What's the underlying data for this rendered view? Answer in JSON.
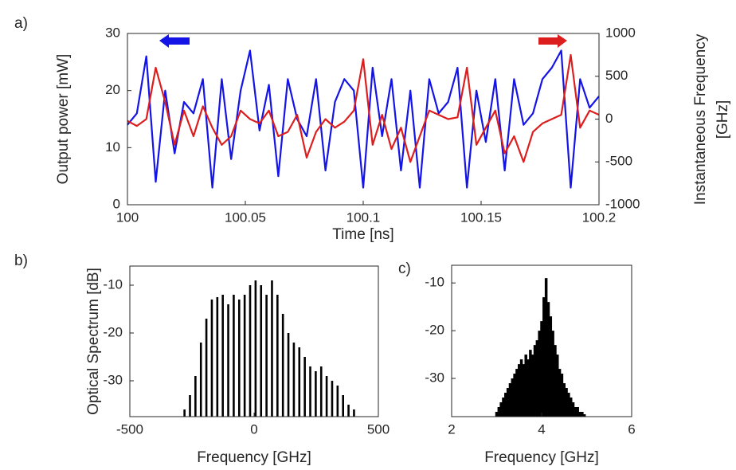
{
  "chart_data": [
    {
      "type": "line",
      "panel_label": "a)",
      "xlabel": "Time [ns]",
      "ylabel": "Output power [mW]",
      "y2label": [
        "Instantaneous Frequency",
        "[GHz]"
      ],
      "x": [
        100,
        100.004,
        100.008,
        100.012,
        100.016,
        100.02,
        100.024,
        100.028,
        100.032,
        100.036,
        100.04,
        100.044,
        100.048,
        100.052,
        100.056,
        100.06,
        100.064,
        100.068,
        100.072,
        100.076,
        100.08,
        100.084,
        100.088,
        100.092,
        100.096,
        100.1,
        100.104,
        100.108,
        100.112,
        100.116,
        100.12,
        100.124,
        100.128,
        100.132,
        100.136,
        100.14,
        100.144,
        100.148,
        100.152,
        100.156,
        100.16,
        100.164,
        100.168,
        100.172,
        100.176,
        100.18,
        100.184,
        100.188,
        100.192,
        100.196,
        100.2
      ],
      "series": [
        {
          "color": "#1414e6",
          "values": [
            14,
            16,
            26,
            4,
            20,
            9,
            18,
            16,
            22,
            3,
            22,
            8,
            20,
            27,
            13,
            21,
            5,
            22,
            15,
            12,
            22,
            6,
            18,
            22,
            20,
            3,
            24,
            12,
            22,
            6,
            20,
            3,
            22,
            16,
            18,
            24,
            3,
            20,
            11,
            22,
            6,
            22,
            14,
            16,
            22,
            24,
            27,
            3,
            22,
            17,
            19
          ]
        },
        {
          "color": "#dc1e1e",
          "axis": "y2",
          "values": [
            -20,
            -80,
            0,
            600,
            200,
            -300,
            100,
            -200,
            150,
            -100,
            -300,
            -200,
            100,
            0,
            -50,
            100,
            -200,
            -150,
            50,
            -450,
            -150,
            0,
            -100,
            -30,
            100,
            700,
            -300,
            50,
            -350,
            -100,
            -500,
            -200,
            100,
            50,
            0,
            20,
            600,
            -300,
            -100,
            100,
            -400,
            -200,
            -500,
            -150,
            -50,
            0,
            50,
            750,
            -100,
            100,
            50
          ]
        }
      ],
      "xlim": [
        100,
        100.2
      ],
      "xticks": [
        100,
        100.05,
        100.1,
        100.15,
        100.2
      ],
      "ylim": [
        0,
        30
      ],
      "yticks": [
        0,
        10,
        20,
        30
      ],
      "y2lim": [
        -1000,
        1000
      ],
      "y2ticks": [
        -1000,
        -500,
        0,
        500,
        1000
      ]
    },
    {
      "type": "bar",
      "panel_label": "b)",
      "xlabel": "Frequency [GHz]",
      "ylabel": "Optical Spectrum [dB]",
      "color": "#000000",
      "x": [
        -280,
        -258,
        -236,
        -214,
        -192,
        -170,
        -148,
        -126,
        -104,
        -82,
        -60,
        -38,
        -16,
        6,
        28,
        50,
        72,
        94,
        116,
        138,
        160,
        182,
        204,
        226,
        248,
        270,
        292,
        314,
        336,
        358,
        380,
        402
      ],
      "values": [
        -36,
        -33,
        -29,
        -22,
        -17,
        -13,
        -12.5,
        -12,
        -14,
        -12,
        -13,
        -12,
        -10,
        -9,
        -10,
        -12,
        -9,
        -12,
        -16,
        -20,
        -22,
        -23,
        -25,
        -27,
        -28,
        -27,
        -29,
        -30,
        -31,
        -33,
        -35,
        -36
      ],
      "xlim": [
        -500,
        500
      ],
      "xticks": [
        -500,
        0,
        500
      ],
      "ylim": [
        -37.5,
        -6
      ],
      "yticks": [
        -10,
        -20,
        -30
      ]
    },
    {
      "type": "bar",
      "panel_label": "c)",
      "xlabel": "Frequency [GHz]",
      "color": "#000000",
      "x": [
        3,
        3.05,
        3.1,
        3.15,
        3.2,
        3.25,
        3.3,
        3.35,
        3.4,
        3.45,
        3.5,
        3.55,
        3.6,
        3.65,
        3.7,
        3.75,
        3.8,
        3.85,
        3.9,
        3.95,
        4,
        4.05,
        4.1,
        4.15,
        4.2,
        4.25,
        4.3,
        4.35,
        4.4,
        4.45,
        4.5,
        4.55,
        4.6,
        4.65,
        4.7,
        4.75,
        4.8,
        4.85,
        4.9,
        4.95
      ],
      "values": [
        -37,
        -36,
        -35,
        -34,
        -33,
        -32,
        -31,
        -30,
        -29,
        -28,
        -27,
        -26,
        -27,
        -25,
        -26,
        -24,
        -25,
        -23,
        -22,
        -20,
        -18,
        -13,
        -9,
        -14,
        -17,
        -20,
        -23,
        -25,
        -28,
        -29,
        -31,
        -32,
        -33,
        -34,
        -35,
        -36,
        -36,
        -37,
        -37,
        -37.5
      ],
      "xlim": [
        2,
        6
      ],
      "xticks": [
        2,
        4,
        6
      ],
      "ylim": [
        -38,
        -6.3
      ],
      "yticks": [
        -10,
        -20,
        -30
      ]
    }
  ]
}
